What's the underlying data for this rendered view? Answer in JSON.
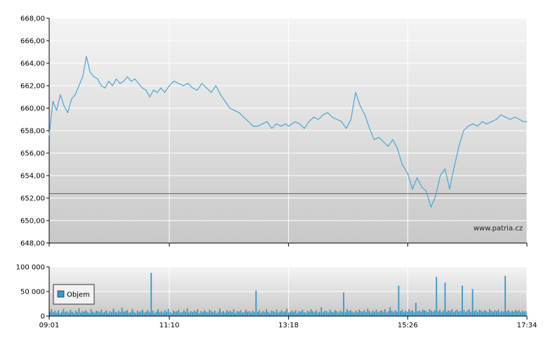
{
  "watermark": "www.patria.cz",
  "colors": {
    "price_line": "#4aa6d6",
    "reference_line": "#cc3333",
    "volume_bar": "#3399cc",
    "grid": "#ffffff",
    "plot_bg_top": "#f4f4f4",
    "plot_bg_bottom": "#c8c8c8",
    "legend_swatch": "#3399cc"
  },
  "chart_data": [
    {
      "type": "line",
      "title": "",
      "xlabel": "",
      "ylabel": "",
      "ylim": [
        648,
        668
      ],
      "y_ticks": [
        "648,00",
        "650,00",
        "652,00",
        "654,00",
        "656,00",
        "658,00",
        "660,00",
        "662,00",
        "664,00",
        "666,00",
        "668,00"
      ],
      "x_ticks": [
        "09:01",
        "11:10",
        "13:18",
        "15:26",
        "17:34"
      ],
      "grid": true,
      "reference_line": 652.4,
      "series": [
        {
          "x": [
            "09:01",
            "09:05",
            "09:09",
            "09:13",
            "09:17",
            "09:21",
            "09:25",
            "09:29",
            "09:33",
            "09:37",
            "09:41",
            "09:45",
            "09:49",
            "09:53",
            "09:57",
            "10:01",
            "10:05",
            "10:09",
            "10:13",
            "10:17",
            "10:21",
            "10:25",
            "10:29",
            "10:33",
            "10:37",
            "10:41",
            "10:45",
            "10:49",
            "10:53",
            "10:57",
            "11:01",
            "11:05",
            "11:10",
            "11:15",
            "11:20",
            "11:25",
            "11:30",
            "11:35",
            "11:40",
            "11:45",
            "11:50",
            "11:55",
            "12:00",
            "12:05",
            "12:10",
            "12:15",
            "12:20",
            "12:25",
            "12:30",
            "12:35",
            "12:40",
            "12:45",
            "12:50",
            "12:55",
            "13:00",
            "13:05",
            "13:10",
            "13:15",
            "13:18",
            "13:25",
            "13:30",
            "13:35",
            "13:40",
            "13:45",
            "13:50",
            "13:55",
            "14:00",
            "14:05",
            "14:10",
            "14:15",
            "14:20",
            "14:25",
            "14:30",
            "14:35",
            "14:40",
            "14:45",
            "14:50",
            "14:55",
            "15:00",
            "15:05",
            "15:10",
            "15:15",
            "15:20",
            "15:26",
            "15:31",
            "15:36",
            "15:41",
            "15:46",
            "15:51",
            "15:56",
            "16:01",
            "16:06",
            "16:11",
            "16:16",
            "16:21",
            "16:26",
            "16:31",
            "16:36",
            "16:41",
            "16:46",
            "16:51",
            "16:56",
            "17:01",
            "17:06",
            "17:11",
            "17:16",
            "17:21",
            "17:26",
            "17:30",
            "17:34"
          ],
          "values": [
            657.6,
            660.6,
            659.8,
            661.2,
            660.2,
            659.6,
            660.8,
            661.2,
            662.0,
            662.8,
            664.6,
            663.2,
            662.8,
            662.6,
            662.0,
            661.8,
            662.4,
            662.0,
            662.6,
            662.2,
            662.4,
            662.8,
            662.4,
            662.6,
            662.2,
            661.8,
            661.6,
            661.0,
            661.6,
            661.4,
            661.8,
            661.4,
            662.0,
            662.4,
            662.2,
            662.0,
            662.2,
            661.8,
            661.6,
            662.2,
            661.8,
            661.4,
            662.0,
            661.2,
            660.6,
            660.0,
            659.8,
            659.6,
            659.2,
            658.8,
            658.4,
            658.4,
            658.6,
            658.8,
            658.2,
            658.6,
            658.4,
            658.6,
            658.4,
            658.8,
            658.6,
            658.2,
            658.8,
            659.2,
            659.0,
            659.4,
            659.6,
            659.2,
            659.0,
            658.8,
            658.2,
            659.0,
            661.4,
            660.2,
            659.4,
            658.2,
            657.2,
            657.4,
            657.0,
            656.6,
            657.2,
            656.4,
            655.0,
            654.2,
            652.8,
            653.8,
            653.0,
            652.6,
            651.2,
            652.2,
            654.0,
            654.6,
            652.8,
            654.8,
            656.6,
            658.0,
            658.4,
            658.6,
            658.4,
            658.8,
            658.6,
            658.8,
            659.0,
            659.4,
            659.2,
            659.0,
            659.2,
            659.0,
            658.8,
            658.8
          ]
        }
      ]
    },
    {
      "type": "bar",
      "title": "",
      "xlabel": "",
      "ylabel": "",
      "ylim": [
        0,
        100000
      ],
      "y_ticks": [
        "0",
        "50 000",
        "100 000"
      ],
      "x_ticks": [
        "09:01",
        "11:10",
        "13:18",
        "15:26",
        "17:34"
      ],
      "grid": true,
      "legend_placement": "middle-left",
      "series": [
        {
          "name": "Objem",
          "values": [
            9000,
            14000,
            8000,
            11000,
            7000,
            12000,
            6000,
            9000,
            15000,
            8000,
            10000,
            7000,
            13000,
            9000,
            6000,
            11000,
            8000,
            16000,
            7000,
            10000,
            9000,
            12000,
            8000,
            6000,
            14000,
            9000,
            7000,
            11000,
            10000,
            8000,
            13000,
            7000,
            9000,
            12000,
            6000,
            10000,
            8000,
            15000,
            9000,
            7000,
            11000,
            8000,
            17000,
            9000,
            10000,
            12000,
            7000,
            8000,
            14000,
            9000,
            6000,
            11000,
            8000,
            10000,
            13000,
            7000,
            9000,
            12000,
            8000,
            88000,
            11000,
            6000,
            9000,
            14000,
            8000,
            10000,
            7000,
            12000,
            9000,
            15000,
            8000,
            6000,
            11000,
            9000,
            10000,
            13000,
            7000,
            8000,
            12000,
            9000,
            16000,
            7000,
            10000,
            8000,
            11000,
            9000,
            14000,
            6000,
            10000,
            8000,
            12000,
            9000,
            7000,
            13000,
            10000,
            8000,
            11000,
            6000,
            9000,
            15000,
            8000,
            10000,
            7000,
            12000,
            9000,
            11000,
            8000,
            14000,
            6000,
            10000,
            9000,
            12000,
            7000,
            8000,
            13000,
            9000,
            10000,
            7000,
            11000,
            8000,
            52000,
            9000,
            12000,
            7000,
            10000,
            8000,
            14000,
            9000,
            6000,
            11000,
            10000,
            8000,
            13000,
            7000,
            9000,
            12000,
            8000,
            10000,
            15000,
            7000,
            9000,
            11000,
            8000,
            12000,
            6000,
            10000,
            9000,
            13000,
            8000,
            7000,
            11000,
            9000,
            14000,
            10000,
            8000,
            12000,
            7000,
            9000,
            18000,
            8000,
            11000,
            10000,
            7000,
            13000,
            9000,
            8000,
            12000,
            10000,
            7000,
            11000,
            9000,
            48000,
            8000,
            14000,
            10000,
            12000,
            9000,
            7000,
            11000,
            8000,
            13000,
            10000,
            9000,
            12000,
            8000,
            15000,
            10000,
            7000,
            11000,
            9000,
            13000,
            8000,
            10000,
            12000,
            9000,
            14000,
            7000,
            10000,
            18000,
            11000,
            8000,
            12000,
            9000,
            62000,
            10000,
            13000,
            8000,
            11000,
            9000,
            14000,
            10000,
            12000,
            8000,
            27000,
            10000,
            11000,
            9000,
            13000,
            12000,
            10000,
            8000,
            14000,
            11000,
            9000,
            12000,
            80000,
            10000,
            13000,
            8000,
            11000,
            68000,
            9000,
            12000,
            10000,
            14000,
            8000,
            11000,
            13000,
            9000,
            10000,
            62000,
            12000,
            8000,
            11000,
            14000,
            9000,
            55000,
            10000,
            12000,
            8000,
            13000,
            11000,
            9000,
            12000,
            10000,
            8000,
            14000,
            11000,
            9000,
            12000,
            10000,
            13000,
            8000,
            11000,
            9000,
            82000,
            10000,
            12000,
            8000,
            11000,
            9000,
            13000,
            10000,
            12000,
            8000,
            11000,
            9000,
            10000
          ]
        }
      ]
    }
  ]
}
